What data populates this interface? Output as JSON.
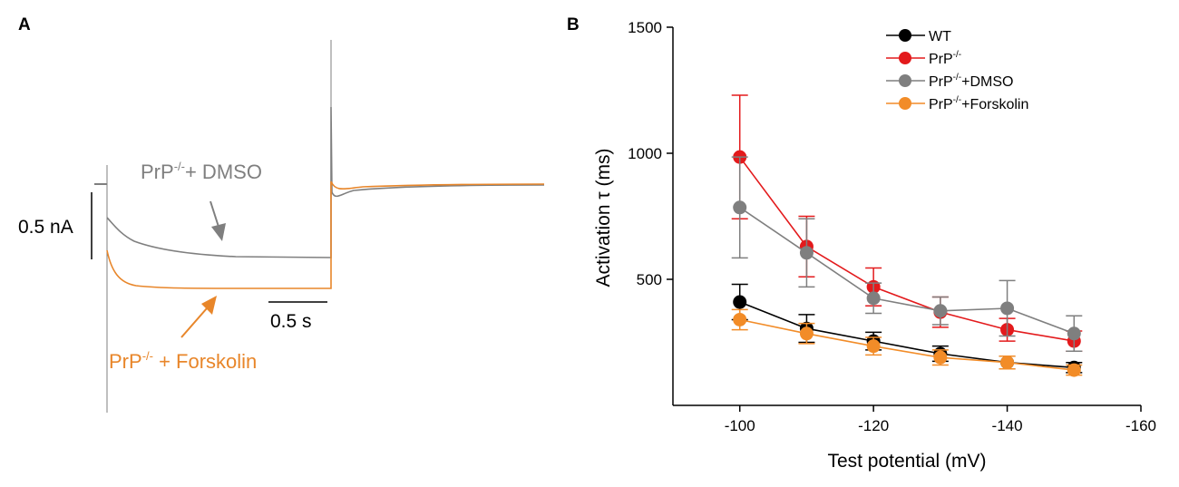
{
  "panel_a": {
    "label": "A",
    "trace_dmso_label_main": "PrP",
    "trace_dmso_label_sup": "-/-",
    "trace_dmso_label_rest": "+ DMSO",
    "trace_forskolin_label_main": "PrP",
    "trace_forskolin_label_sup": "-/-",
    "trace_forskolin_label_rest": " + Forskolin",
    "current_scale_label": "0.5 nA",
    "time_scale_label": "0.5 s",
    "colors": {
      "dmso": "#7f7f7f",
      "forskolin": "#e8862a",
      "scale": "#000000"
    }
  },
  "panel_b": {
    "label": "B",
    "legend": [
      {
        "main": "WT",
        "sup": "",
        "rest": ""
      },
      {
        "main": "PrP",
        "sup": "-/-",
        "rest": ""
      },
      {
        "main": "PrP",
        "sup": "-/-",
        "rest": "+DMSO"
      },
      {
        "main": "PrP",
        "sup": "-/-",
        "rest": "+Forskolin"
      }
    ],
    "ylabel_prefix": "Activation ",
    "ylabel_tau": "τ",
    "ylabel_suffix": " (ms)",
    "xlabel": "Test potential (mV)"
  },
  "chart_data": {
    "type": "line",
    "title": "",
    "xlabel": "Test potential (mV)",
    "ylabel": "Activation τ (ms)",
    "x": [
      -100,
      -110,
      -120,
      -130,
      -140,
      -150
    ],
    "xlim": [
      -90,
      -160
    ],
    "ylim": [
      0,
      1500
    ],
    "xticks": [
      "-100",
      "-120",
      "-140",
      "-160"
    ],
    "yticks": [
      "500",
      "1000",
      "1500"
    ],
    "series": [
      {
        "name": "WT",
        "color": "#000000",
        "values": [
          410,
          305,
          255,
          205,
          170,
          150
        ],
        "errors": [
          70,
          55,
          35,
          30,
          25,
          20
        ]
      },
      {
        "name": "PrP-/-",
        "color": "#e31a1c",
        "values": [
          985,
          630,
          470,
          370,
          300,
          255
        ],
        "errors": [
          245,
          120,
          75,
          60,
          45,
          40
        ]
      },
      {
        "name": "PrP-/-+DMSO",
        "color": "#7f7f7f",
        "values": [
          785,
          605,
          425,
          375,
          385,
          285
        ],
        "errors": [
          200,
          135,
          60,
          55,
          110,
          70
        ]
      },
      {
        "name": "PrP-/-+Forskolin",
        "color": "#f28c28",
        "values": [
          340,
          285,
          235,
          190,
          170,
          140
        ],
        "errors": [
          40,
          40,
          35,
          30,
          25,
          20
        ]
      }
    ]
  }
}
